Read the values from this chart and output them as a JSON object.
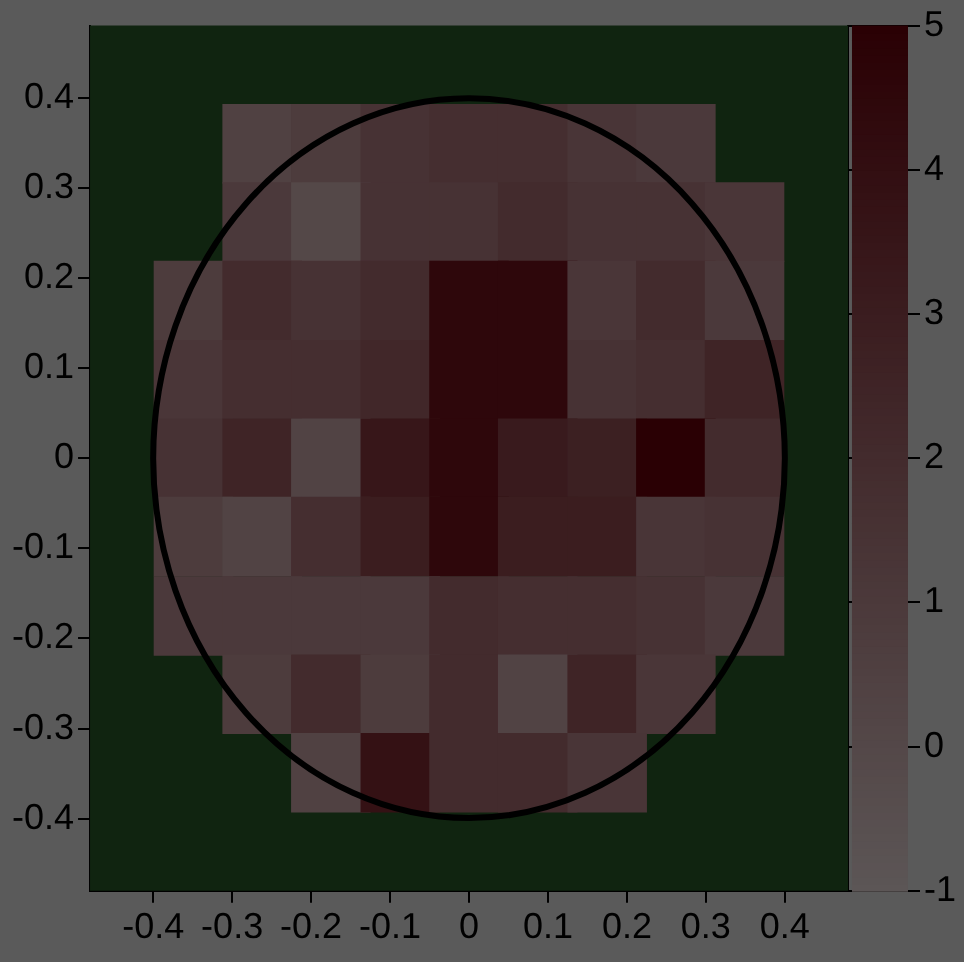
{
  "chart_data": {
    "type": "scatter",
    "marker": "square",
    "x": [
      -0.262,
      -0.175,
      -0.087,
      0,
      0.087,
      0.175,
      0.262,
      -0.262,
      -0.175,
      -0.087,
      0,
      0.087,
      0.175,
      0.262,
      0.349,
      -0.349,
      -0.262,
      -0.175,
      -0.087,
      0,
      0.087,
      0.175,
      0.262,
      0.349,
      -0.349,
      -0.262,
      -0.175,
      -0.087,
      0,
      0.087,
      0.175,
      0.262,
      0.349,
      -0.349,
      -0.262,
      -0.175,
      -0.087,
      0,
      0.087,
      0.175,
      0.262,
      0.349,
      -0.349,
      -0.262,
      -0.175,
      -0.087,
      0,
      0.087,
      0.175,
      0.262,
      0.349,
      -0.349,
      -0.262,
      -0.175,
      -0.087,
      0,
      0.087,
      0.175,
      0.262,
      0.349,
      -0.262,
      -0.175,
      -0.087,
      0,
      0.087,
      0.175,
      0.262,
      -0.175,
      -0.087,
      0,
      0.087,
      0.175
    ],
    "values": [
      0.349,
      0.349,
      0.349,
      0.349,
      0.349,
      0.349,
      0.349,
      0.262,
      0.262,
      0.262,
      0.262,
      0.262,
      0.262,
      0.262,
      0.262,
      0.175,
      0.175,
      0.175,
      0.175,
      0.175,
      0.175,
      0.175,
      0.175,
      0.175,
      0.087,
      0.087,
      0.087,
      0.087,
      0.087,
      0.087,
      0.087,
      0.087,
      0.087,
      0,
      0,
      0,
      0,
      0,
      0,
      0,
      0,
      0,
      -0.087,
      -0.087,
      -0.087,
      -0.087,
      -0.087,
      -0.087,
      -0.087,
      -0.087,
      -0.087,
      -0.175,
      -0.175,
      -0.175,
      -0.175,
      -0.175,
      -0.175,
      -0.175,
      -0.175,
      -0.175,
      -0.262,
      -0.262,
      -0.262,
      -0.262,
      -0.262,
      -0.262,
      -0.262,
      -0.349,
      -0.349,
      -0.349,
      -0.349,
      -0.349
    ],
    "cvalues": [
      0.5,
      0.8,
      1.5,
      1.8,
      1.8,
      1.3,
      1.0,
      1.0,
      0.0,
      1.5,
      1.5,
      2.0,
      1.5,
      1.5,
      1.2,
      0.8,
      2.0,
      1.5,
      2.0,
      4.5,
      4.5,
      1.2,
      2.0,
      1.0,
      1.2,
      1.8,
      1.8,
      2.3,
      4.5,
      4.5,
      1.5,
      1.8,
      2.5,
      1.5,
      2.5,
      0.3,
      3.5,
      4.5,
      3.2,
      2.8,
      5.0,
      2.0,
      0.8,
      0.3,
      1.8,
      3.0,
      4.5,
      3.0,
      3.0,
      1.3,
      1.5,
      1.0,
      1.0,
      1.0,
      1.0,
      2.0,
      1.8,
      1.8,
      1.5,
      1.0,
      0.8,
      2.0,
      0.8,
      2.0,
      0.3,
      2.5,
      1.2,
      0.5,
      3.8,
      2.0,
      2.0,
      1.3
    ],
    "xlim": [
      -0.48,
      0.48
    ],
    "xticks": [
      -0.4,
      -0.3,
      -0.2,
      -0.1,
      0,
      0.1,
      0.2,
      0.3,
      0.4
    ],
    "ylim": [
      -0.48,
      0.48
    ],
    "yticks": [
      -0.4,
      -0.3,
      -0.2,
      -0.1,
      0,
      0.1,
      0.2,
      0.3,
      0.4
    ],
    "clim": [
      -1,
      5
    ],
    "cticks": [
      -1,
      0,
      1,
      2,
      3,
      4,
      5
    ]
  }
}
